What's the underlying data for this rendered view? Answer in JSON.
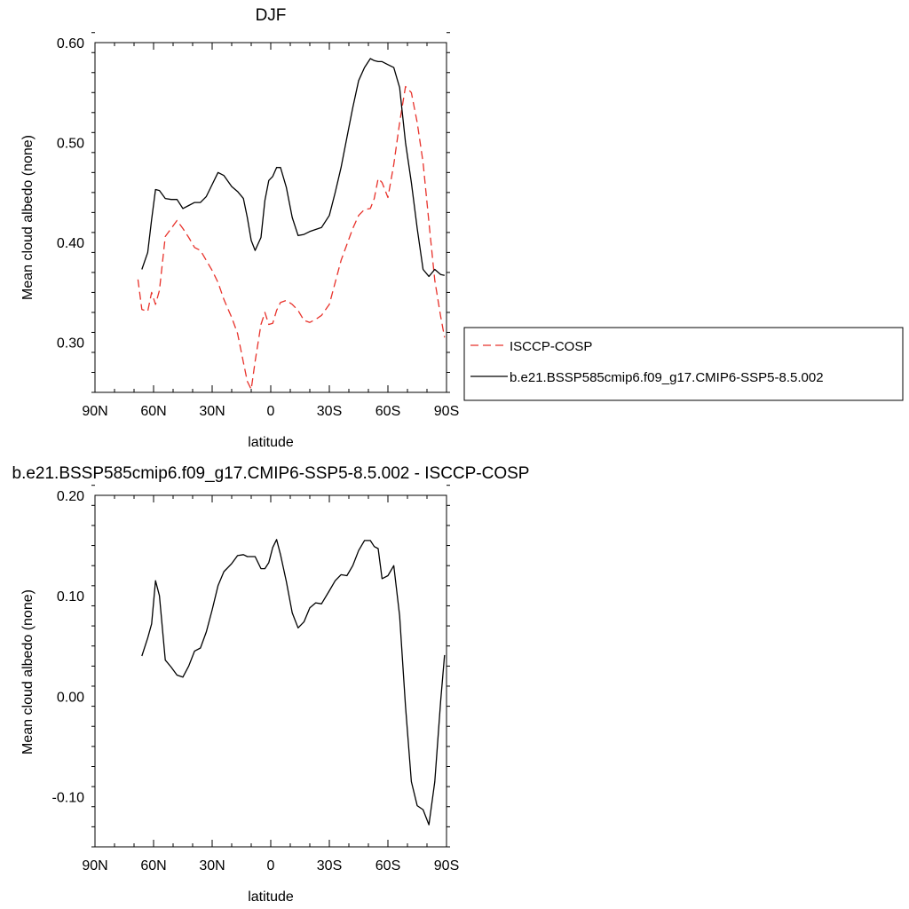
{
  "chart_data": [
    {
      "type": "line",
      "title": "DJF",
      "xlabel": "latitude",
      "ylabel": "Mean cloud albedo (none)",
      "x_tick_labels": [
        "90N",
        "60N",
        "30N",
        "0",
        "30S",
        "60S",
        "90S"
      ],
      "x_tick_values": [
        90,
        60,
        30,
        0,
        -30,
        -60,
        -90
      ],
      "y_tick_labels": [
        "0.30",
        "0.40",
        "0.50",
        "0.60"
      ],
      "y_tick_values": [
        0.3,
        0.4,
        0.5,
        0.6
      ],
      "xlim": [
        90,
        -90
      ],
      "ylim": [
        0.25,
        0.6
      ],
      "legend_position": "right",
      "series": [
        {
          "name": "ISCCP-COSP",
          "color": "#e8312a",
          "dash": "dashed",
          "x": [
            68,
            66,
            63,
            61,
            59,
            57,
            54,
            51,
            48,
            45,
            42,
            39,
            36,
            33,
            30,
            27,
            24,
            20,
            17,
            14,
            12,
            10,
            8,
            5,
            3,
            1,
            -1,
            -3,
            -5,
            -8,
            -11,
            -14,
            -17,
            -20,
            -23,
            -26,
            -30,
            -33,
            -36,
            -39,
            -42,
            -45,
            -48,
            -51,
            -53,
            -55,
            -57,
            -60,
            -63,
            -66,
            -69,
            -72,
            -75,
            -78,
            -81,
            -84,
            -87,
            -89
          ],
          "y": [
            0.363,
            0.333,
            0.331,
            0.35,
            0.338,
            0.352,
            0.406,
            0.414,
            0.422,
            0.414,
            0.405,
            0.395,
            0.392,
            0.382,
            0.372,
            0.36,
            0.343,
            0.325,
            0.309,
            0.28,
            0.261,
            0.253,
            0.281,
            0.318,
            0.33,
            0.318,
            0.319,
            0.332,
            0.34,
            0.342,
            0.338,
            0.332,
            0.322,
            0.32,
            0.323,
            0.327,
            0.338,
            0.36,
            0.382,
            0.398,
            0.414,
            0.427,
            0.433,
            0.434,
            0.444,
            0.464,
            0.46,
            0.445,
            0.478,
            0.52,
            0.556,
            0.55,
            0.52,
            0.48,
            0.42,
            0.362,
            0.326,
            0.305
          ]
        },
        {
          "name": "b.e21.BSSP585cmip6.f09_g17.CMIP6-SSP5-8.5.002",
          "color": "#000000",
          "dash": "solid",
          "x": [
            66,
            63,
            61,
            59,
            57,
            54,
            51,
            48,
            45,
            42,
            39,
            36,
            33,
            30,
            27,
            24,
            20,
            17,
            14,
            12,
            10,
            8,
            5,
            3,
            1,
            -1,
            -3,
            -5,
            -8,
            -11,
            -14,
            -17,
            -20,
            -23,
            -26,
            -30,
            -33,
            -36,
            -39,
            -42,
            -45,
            -48,
            -51,
            -53,
            -55,
            -57,
            -60,
            -63,
            -66,
            -69,
            -72,
            -75,
            -78,
            -81,
            -84,
            -87,
            -89
          ],
          "y": [
            0.373,
            0.39,
            0.423,
            0.453,
            0.452,
            0.444,
            0.443,
            0.443,
            0.434,
            0.437,
            0.44,
            0.44,
            0.446,
            0.458,
            0.47,
            0.467,
            0.456,
            0.451,
            0.444,
            0.425,
            0.402,
            0.392,
            0.405,
            0.442,
            0.462,
            0.466,
            0.475,
            0.475,
            0.455,
            0.425,
            0.407,
            0.408,
            0.411,
            0.413,
            0.415,
            0.427,
            0.45,
            0.475,
            0.505,
            0.535,
            0.562,
            0.575,
            0.584,
            0.582,
            0.581,
            0.581,
            0.578,
            0.575,
            0.555,
            0.5,
            0.46,
            0.414,
            0.373,
            0.366,
            0.373,
            0.368,
            0.367
          ]
        }
      ]
    },
    {
      "type": "line",
      "title": "b.e21.BSSP585cmip6.f09_g17.CMIP6-SSP5-8.5.002 - ISCCP-COSP",
      "xlabel": "latitude",
      "ylabel": "Mean cloud albedo (none)",
      "x_tick_labels": [
        "90N",
        "60N",
        "30N",
        "0",
        "30S",
        "60S",
        "90S"
      ],
      "x_tick_values": [
        90,
        60,
        30,
        0,
        -30,
        -60,
        -90
      ],
      "y_tick_labels": [
        "-0.10",
        "0.00",
        "0.10",
        "0.20"
      ],
      "y_tick_values": [
        -0.1,
        0.0,
        0.1,
        0.2
      ],
      "xlim": [
        90,
        -90
      ],
      "ylim": [
        -0.15,
        0.2
      ],
      "series": [
        {
          "name": "",
          "color": "#000000",
          "dash": "solid",
          "x": [
            66,
            63,
            61,
            59,
            57,
            54,
            51,
            48,
            45,
            42,
            39,
            36,
            33,
            30,
            27,
            24,
            20,
            17,
            14,
            12,
            10,
            8,
            5,
            3,
            1,
            -1,
            -3,
            -5,
            -8,
            -11,
            -14,
            -17,
            -20,
            -23,
            -26,
            -30,
            -33,
            -36,
            -39,
            -42,
            -45,
            -48,
            -51,
            -53,
            -55,
            -57,
            -60,
            -63,
            -66,
            -69,
            -72,
            -75,
            -78,
            -81,
            -84,
            -87,
            -89
          ],
          "y": [
            0.04,
            0.058,
            0.072,
            0.115,
            0.1,
            0.036,
            0.029,
            0.021,
            0.019,
            0.03,
            0.045,
            0.048,
            0.064,
            0.086,
            0.11,
            0.124,
            0.132,
            0.14,
            0.141,
            0.139,
            0.139,
            0.139,
            0.127,
            0.127,
            0.133,
            0.148,
            0.156,
            0.141,
            0.114,
            0.083,
            0.068,
            0.074,
            0.088,
            0.093,
            0.092,
            0.105,
            0.115,
            0.121,
            0.12,
            0.13,
            0.145,
            0.155,
            0.155,
            0.149,
            0.147,
            0.117,
            0.12,
            0.13,
            0.08,
            -0.01,
            -0.085,
            -0.109,
            -0.113,
            -0.128,
            -0.085,
            -0.005,
            0.041
          ]
        }
      ]
    }
  ]
}
